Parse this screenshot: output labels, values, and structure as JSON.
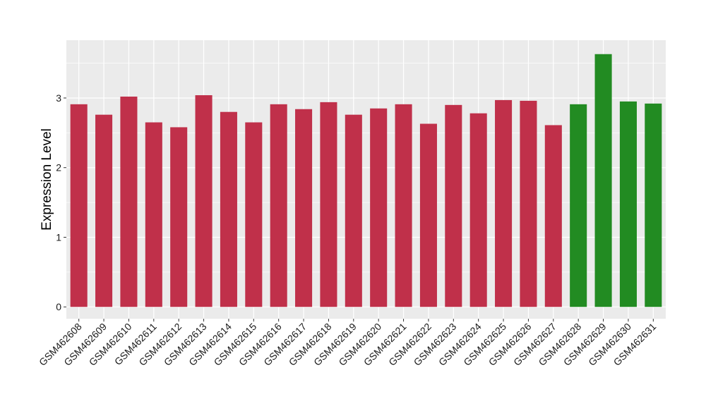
{
  "chart_data": {
    "type": "bar",
    "title": "",
    "xlabel": "",
    "ylabel": "Expression Level",
    "ylim": [
      -0.17,
      3.83
    ],
    "yticks": [
      0,
      1,
      2,
      3
    ],
    "grid": true,
    "legend": "none",
    "panel_background": "#ebebeb",
    "grid_color": "#ffffff",
    "categories": [
      "GSM462608",
      "GSM462609",
      "GSM462610",
      "GSM462611",
      "GSM462612",
      "GSM462613",
      "GSM462614",
      "GSM462615",
      "GSM462616",
      "GSM462617",
      "GSM462618",
      "GSM462619",
      "GSM462620",
      "GSM462621",
      "GSM462622",
      "GSM462623",
      "GSM462624",
      "GSM462625",
      "GSM462626",
      "GSM462627",
      "GSM462628",
      "GSM462629",
      "GSM462630",
      "GSM462631"
    ],
    "values": [
      2.91,
      2.76,
      3.02,
      2.65,
      2.58,
      3.04,
      2.8,
      2.65,
      2.91,
      2.84,
      2.94,
      2.76,
      2.85,
      2.91,
      2.63,
      2.9,
      2.78,
      2.97,
      2.96,
      2.61,
      2.91,
      3.63,
      2.95,
      2.92
    ],
    "bar_colors": [
      "#c0304a",
      "#c0304a",
      "#c0304a",
      "#c0304a",
      "#c0304a",
      "#c0304a",
      "#c0304a",
      "#c0304a",
      "#c0304a",
      "#c0304a",
      "#c0304a",
      "#c0304a",
      "#c0304a",
      "#c0304a",
      "#c0304a",
      "#c0304a",
      "#c0304a",
      "#c0304a",
      "#c0304a",
      "#c0304a",
      "#228b22",
      "#228b22",
      "#228b22",
      "#228b22"
    ]
  }
}
